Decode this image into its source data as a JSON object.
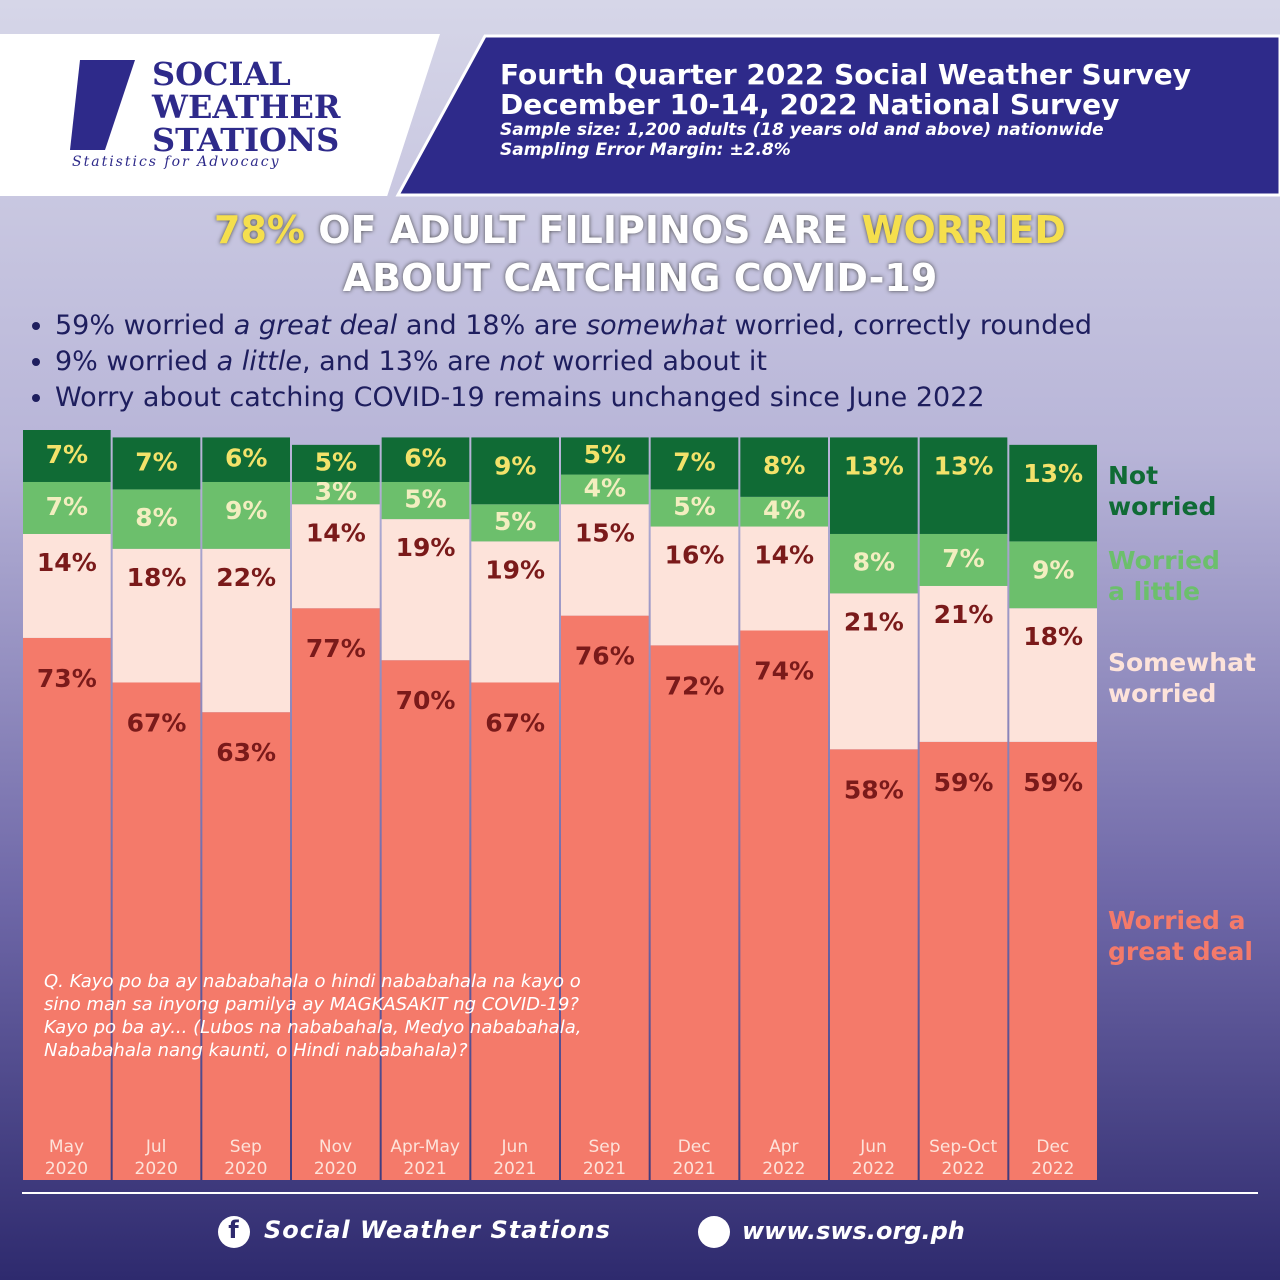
{
  "header": {
    "logo": [
      "SOCIAL",
      "WEATHER",
      "STATIONS"
    ],
    "tagline": "Statistics for Advocacy",
    "survey_title": "Fourth Quarter 2022 Social Weather Survey",
    "survey_subtitle": "December 10-14, 2022 National Survey",
    "sample": "Sample size: 1,200 adults (18 years old and above) nationwide",
    "error_margin": "Sampling Error Margin: ±2.8%"
  },
  "headline": [
    "78%",
    "OF ADULT FILIPINOS ARE",
    "WORRIED",
    "ABOUT CATCHING COVID-19"
  ],
  "bullets": [
    [
      "59% worried ",
      "a great deal",
      " and 18% are ",
      "somewhat",
      " worried, correctly rounded"
    ],
    [
      "9% worried ",
      "a little",
      ", and 13% are ",
      "not",
      " worried about it"
    ],
    [
      "Worry about catching COVID-19 remains unchanged since June 2022"
    ]
  ],
  "chart_data": {
    "type": "stacked_bar",
    "categories": [
      "May\n2020",
      "Jul\n2020",
      "Sep\n2020",
      "Nov\n2020",
      "Apr-May\n2021",
      "Jun\n2021",
      "Sep\n2021",
      "Dec\n2021",
      "Apr\n2022",
      "Jun\n2022",
      "Sep-Oct\n2022",
      "Dec\n2022"
    ],
    "ylim": [
      0,
      101
    ],
    "series": [
      {
        "name": "Worried a\ngreat deal",
        "color": "#f47a6a",
        "values": [
          73,
          67,
          63,
          77,
          70,
          67,
          76,
          72,
          74,
          58,
          59,
          59
        ],
        "value_labels": [
          "73%",
          "67%",
          "63%",
          "77%",
          "70%",
          "67%",
          "76%",
          "72%",
          "74%",
          "58%",
          "59%",
          "59%"
        ]
      },
      {
        "name": "Somewhat\nworried",
        "color": "#fde3da",
        "values": [
          14,
          18,
          22,
          14,
          19,
          19,
          15,
          16,
          14,
          21,
          21,
          18
        ],
        "value_labels": [
          "14%",
          "18%",
          "22%",
          "14%",
          "19%",
          "19%",
          "15%",
          "16%",
          "14%",
          "21%",
          "21%",
          "18%"
        ]
      },
      {
        "name": "Worried\na little",
        "color": "#6cbf6c",
        "values": [
          7,
          8,
          9,
          3,
          5,
          5,
          4,
          5,
          4,
          8,
          7,
          9
        ],
        "value_labels": [
          "7%",
          "8%",
          "9%",
          "3%",
          "5%",
          "5%",
          "4%",
          "5%",
          "4%",
          "8%",
          "7%",
          "9%"
        ]
      },
      {
        "name": "Not\nworried",
        "color": "#106b35",
        "values": [
          7,
          7,
          6,
          5,
          6,
          9,
          5,
          7,
          8,
          13,
          13,
          13
        ],
        "value_labels": [
          "7%",
          "7%",
          "6%",
          "5%",
          "6%",
          "9%",
          "5%",
          "7%",
          "8%",
          "13%",
          "13%",
          "13%"
        ]
      }
    ],
    "note": "Q. Kayo po ba ay nababahala o hindi nababahala na kayo o sino man sa inyong pamilya ay MAGKASAKIT ng COVID-19? Kayo po ba ay... (Lubos na nababahala, Medyo nababahala, Nababahala nang kaunti, o Hindi nababahala)?"
  },
  "footer": {
    "facebook": "Social Weather Stations",
    "website": "www.sws.org.ph"
  }
}
